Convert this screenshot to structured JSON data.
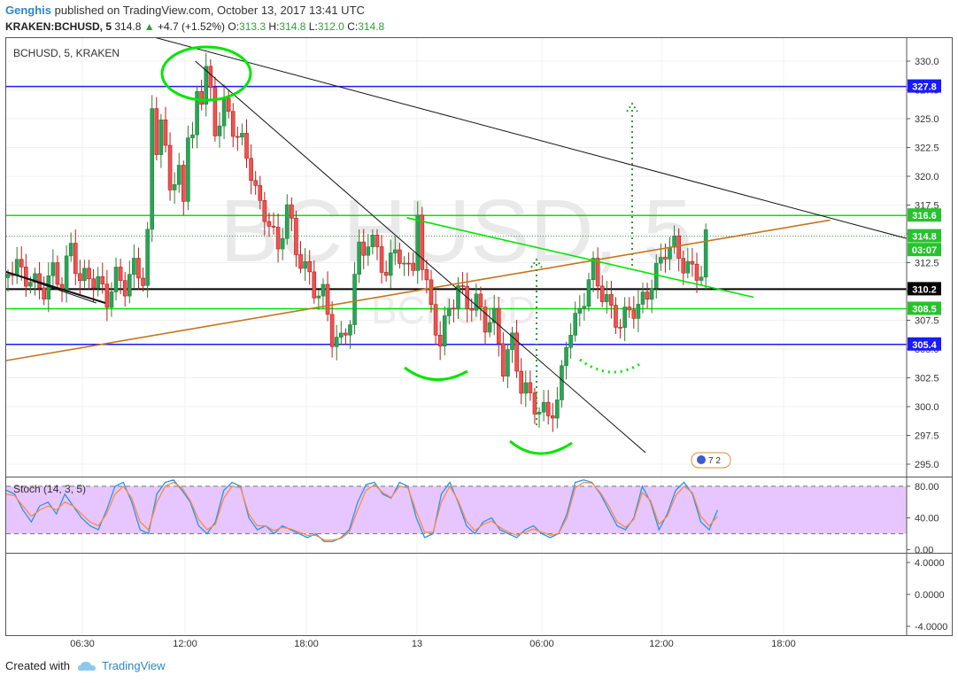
{
  "header": {
    "author": "Genghis",
    "published_text": "published on TradingView.com, October 13, 2017 13:41 UTC",
    "symbol_line": "KRAKEN:BCHUSD, 5",
    "last": "314.8",
    "change_arrow": "▲",
    "change": "+4.7 (+1.52%)",
    "o_label": "O:",
    "o": "313.3",
    "h_label": "H:",
    "h": "314.8",
    "l_label": "L:",
    "l": "312.0",
    "c_label": "C:",
    "c": "314.8"
  },
  "pane_title": "BCHUSD, 5, KRAKEN",
  "watermark": {
    "main": "BCHUSD, 5",
    "sub": "BCHUSD"
  },
  "stoch_title": "Stoch (14, 3, 5)",
  "footer": {
    "created_with": "Created with",
    "brand": "TradingView"
  },
  "events_badge": "7 2",
  "colors": {
    "up": "#26a69a",
    "down": "#ef5350",
    "green_line": "#00e600",
    "blue_line": "#1a1aff",
    "trend": "#111111",
    "orange": "#c7731b",
    "stoch_fill": "#e7c6ff",
    "k_line": "#2196f3",
    "d_line": "#ff8a3d"
  },
  "chart_data": [
    {
      "type": "candlestick",
      "title": "BCHUSD, 5, KRAKEN",
      "ylim": [
        294,
        332
      ],
      "y_ticks": [
        330.0,
        327.5,
        325.0,
        322.5,
        320.0,
        317.5,
        315.0,
        312.5,
        310.0,
        307.5,
        305.0,
        302.5,
        300.0,
        297.5,
        295.0
      ],
      "x_ticks": [
        "06:30",
        "12:00",
        "18:00",
        "13",
        "06:00",
        "12:00",
        "18:00"
      ],
      "horizontal_levels": [
        {
          "value": 327.8,
          "color": "blue"
        },
        {
          "value": 316.6,
          "color": "green"
        },
        {
          "value": 310.2,
          "color": "black"
        },
        {
          "value": 308.5,
          "color": "green"
        },
        {
          "value": 305.4,
          "color": "blue"
        }
      ],
      "price_labels": [
        {
          "text": "327.8",
          "value": 327.8,
          "style": "blue"
        },
        {
          "text": "316.6",
          "value": 316.6,
          "style": "green"
        },
        {
          "text": "314.8",
          "value": 314.8,
          "style": "green"
        },
        {
          "text": "03:07",
          "value": 313.6,
          "style": "green"
        },
        {
          "text": "310.2",
          "value": 310.2,
          "style": "black"
        },
        {
          "text": "308.5",
          "value": 308.5,
          "style": "green"
        },
        {
          "text": "305.4",
          "value": 305.4,
          "style": "blue"
        }
      ],
      "trendlines": [
        {
          "from": [
            0.0,
            311.7
          ],
          "to": [
            0.1,
            309.0
          ],
          "color": "black"
        },
        {
          "from": [
            0.12,
            333.0
          ],
          "to": [
            1.0,
            314.6
          ],
          "color": "black"
        },
        {
          "from": [
            0.21,
            330.0
          ],
          "to": [
            0.71,
            296.0
          ],
          "color": "black"
        },
        {
          "from": [
            0.0,
            304.0
          ],
          "to": [
            0.915,
            316.2
          ],
          "color": "orange"
        },
        {
          "from": [
            0.445,
            316.4
          ],
          "to": [
            0.83,
            309.5
          ],
          "color": "green"
        },
        {
          "from": [
            0.615,
            333.5
          ],
          "to": [
            0.685,
            332.8
          ],
          "color": "black"
        }
      ],
      "series": [
        {
          "name": "ohlc",
          "points": [
            [
              0.0,
              311.5
            ],
            [
              0.01,
              312.5
            ],
            [
              0.02,
              311.0
            ],
            [
              0.03,
              310.8
            ],
            [
              0.04,
              310.2
            ],
            [
              0.05,
              311.6
            ],
            [
              0.06,
              311.0
            ],
            [
              0.07,
              313.5
            ],
            [
              0.08,
              311.4
            ],
            [
              0.09,
              310.9
            ],
            [
              0.1,
              311.2
            ],
            [
              0.11,
              309.0
            ],
            [
              0.12,
              311.5
            ],
            [
              0.13,
              310.4
            ],
            [
              0.14,
              312.0
            ],
            [
              0.15,
              311.4
            ],
            [
              0.155,
              314.6
            ],
            [
              0.16,
              326.5
            ],
            [
              0.165,
              321.5
            ],
            [
              0.17,
              325.0
            ],
            [
              0.18,
              319.0
            ],
            [
              0.19,
              320.5
            ],
            [
              0.195,
              318.5
            ],
            [
              0.2,
              322.5
            ],
            [
              0.205,
              324.5
            ],
            [
              0.21,
              326.5
            ],
            [
              0.215,
              327.0
            ],
            [
              0.22,
              329.0
            ],
            [
              0.225,
              328.0
            ],
            [
              0.23,
              323.5
            ],
            [
              0.24,
              326.5
            ],
            [
              0.25,
              324.0
            ],
            [
              0.26,
              323.0
            ],
            [
              0.27,
              320.5
            ],
            [
              0.28,
              317.0
            ],
            [
              0.29,
              316.5
            ],
            [
              0.3,
              313.0
            ],
            [
              0.31,
              318.0
            ],
            [
              0.32,
              313.0
            ],
            [
              0.33,
              312.5
            ],
            [
              0.34,
              309.8
            ],
            [
              0.35,
              310.0
            ],
            [
              0.36,
              306.0
            ],
            [
              0.37,
              305.5
            ],
            [
              0.38,
              308.0
            ],
            [
              0.39,
              313.5
            ],
            [
              0.4,
              314.5
            ],
            [
              0.41,
              313.5
            ],
            [
              0.42,
              311.5
            ],
            [
              0.43,
              313.8
            ],
            [
              0.44,
              312.0
            ],
            [
              0.45,
              312.5
            ],
            [
              0.455,
              315.8
            ],
            [
              0.46,
              312.8
            ],
            [
              0.47,
              308.0
            ],
            [
              0.48,
              306.0
            ],
            [
              0.49,
              308.0
            ],
            [
              0.5,
              310.8
            ],
            [
              0.51,
              308.5
            ],
            [
              0.52,
              309.5
            ],
            [
              0.53,
              307.0
            ],
            [
              0.54,
              307.8
            ],
            [
              0.55,
              303.5
            ],
            [
              0.56,
              305.5
            ],
            [
              0.57,
              302.0
            ],
            [
              0.58,
              300.5
            ],
            [
              0.59,
              300.0
            ],
            [
              0.6,
              299.0
            ],
            [
              0.61,
              300.5
            ],
            [
              0.62,
              305.5
            ],
            [
              0.63,
              307.5
            ],
            [
              0.64,
              309.5
            ],
            [
              0.65,
              312.0
            ],
            [
              0.66,
              310.0
            ],
            [
              0.67,
              308.0
            ],
            [
              0.68,
              307.5
            ],
            [
              0.69,
              308.0
            ],
            [
              0.7,
              309.0
            ],
            [
              0.71,
              309.5
            ],
            [
              0.72,
              312.0
            ],
            [
              0.73,
              313.5
            ],
            [
              0.74,
              314.0
            ],
            [
              0.75,
              312.5
            ],
            [
              0.76,
              311.5
            ],
            [
              0.77,
              312.0
            ],
            [
              0.775,
              314.8
            ]
          ]
        }
      ]
    },
    {
      "type": "line",
      "title": "Stoch (14, 3, 5)",
      "ylim": [
        -3,
        90
      ],
      "y_ticks": [
        80.0,
        40.0,
        0.0
      ],
      "bands": [
        20,
        80
      ],
      "series": [
        {
          "name": "%K",
          "color": "#2196f3",
          "values": [
            75,
            70,
            50,
            35,
            55,
            60,
            45,
            70,
            55,
            40,
            30,
            25,
            50,
            80,
            85,
            60,
            25,
            20,
            70,
            85,
            88,
            75,
            60,
            30,
            20,
            35,
            75,
            85,
            80,
            40,
            25,
            30,
            20,
            30,
            25,
            20,
            15,
            20,
            10,
            10,
            15,
            25,
            60,
            82,
            85,
            70,
            65,
            85,
            80,
            40,
            15,
            20,
            70,
            85,
            60,
            30,
            20,
            35,
            40,
            25,
            20,
            15,
            25,
            30,
            20,
            15,
            20,
            45,
            85,
            88,
            85,
            70,
            50,
            30,
            25,
            40,
            80,
            60,
            25,
            45,
            75,
            85,
            70,
            35,
            25,
            50
          ]
        },
        {
          "name": "%D",
          "color": "#ff8a3d",
          "values": [
            70,
            68,
            55,
            42,
            50,
            55,
            50,
            60,
            55,
            45,
            35,
            30,
            45,
            70,
            80,
            65,
            35,
            25,
            60,
            80,
            85,
            78,
            62,
            38,
            25,
            32,
            65,
            80,
            78,
            45,
            30,
            30,
            24,
            28,
            26,
            22,
            18,
            18,
            12,
            12,
            14,
            22,
            50,
            75,
            82,
            72,
            66,
            80,
            78,
            48,
            22,
            22,
            60,
            80,
            62,
            36,
            24,
            32,
            36,
            28,
            22,
            18,
            22,
            26,
            22,
            18,
            20,
            40,
            78,
            85,
            84,
            72,
            55,
            35,
            28,
            38,
            72,
            62,
            32,
            42,
            68,
            80,
            72,
            42,
            30,
            42
          ]
        }
      ]
    },
    {
      "type": "line",
      "title": "",
      "y_ticks": [
        4.0,
        0.0,
        -4.0
      ],
      "series": []
    }
  ]
}
